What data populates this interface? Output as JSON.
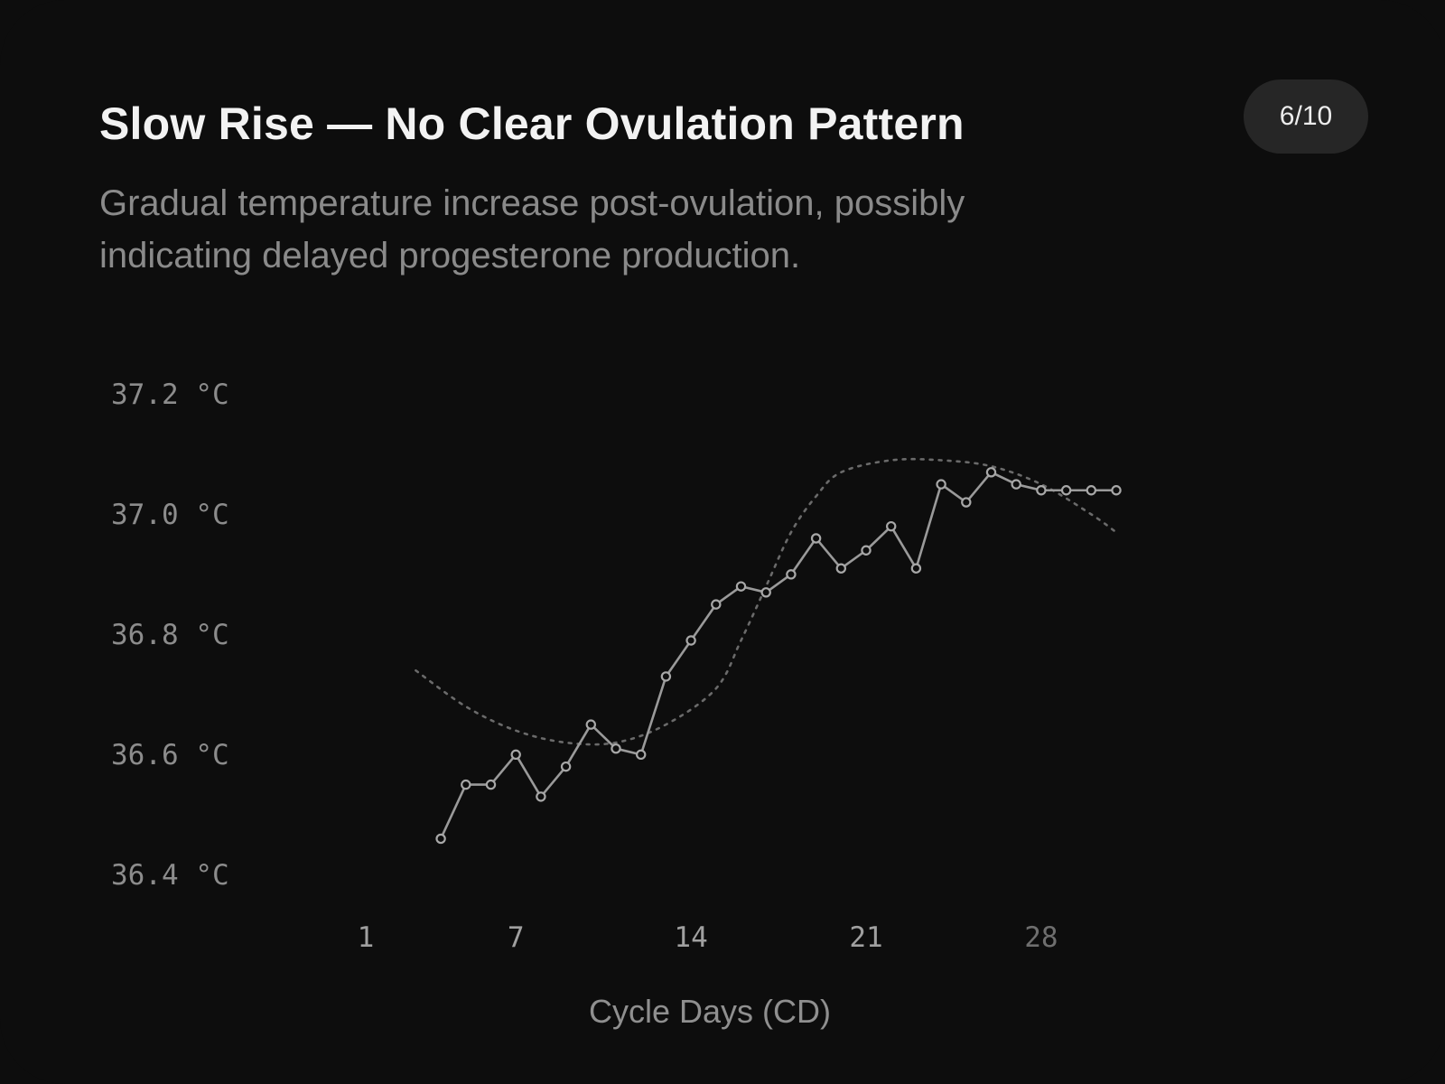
{
  "header": {
    "title": "Slow Rise — No Clear Ovulation Pattern",
    "subtitle": "Gradual temperature increase post-ovulation, possibly indicating delayed progesterone production.",
    "badge": "6/10"
  },
  "colors": {
    "background": "#0d0d0d",
    "line": "#9a9a9a",
    "trend": "#6a6a6a",
    "grid": "#262626"
  },
  "chart_data": {
    "type": "line",
    "xlabel": "Cycle Days (CD)",
    "ylabel": "",
    "x_ticks": [
      "1",
      "7",
      "14",
      "21",
      "28"
    ],
    "x_tick_values": [
      1,
      7,
      14,
      21,
      28
    ],
    "y_ticks": [
      "37.2 °C",
      "37.0 °C",
      "36.8 °C",
      "36.6 °C",
      "36.4 °C"
    ],
    "y_tick_values": [
      37.2,
      37.0,
      36.8,
      36.6,
      36.4
    ],
    "xlim": [
      1,
      32
    ],
    "ylim": [
      36.4,
      37.2
    ],
    "grid": true,
    "series": [
      {
        "x": [
          4,
          5,
          6,
          7,
          8,
          9,
          10,
          11,
          12,
          13,
          14,
          15,
          16,
          17,
          18,
          19,
          20,
          21,
          22,
          23,
          24,
          25,
          26,
          27,
          28,
          29,
          30,
          31
        ],
        "y": [
          36.47,
          36.56,
          36.56,
          36.61,
          36.54,
          36.59,
          36.66,
          36.62,
          36.61,
          36.74,
          36.8,
          36.86,
          36.89,
          36.88,
          36.91,
          36.97,
          36.92,
          36.95,
          36.99,
          36.92,
          37.06,
          37.03,
          37.08,
          37.06,
          37.05,
          37.05,
          37.05,
          37.05
        ]
      }
    ],
    "trend": {
      "style": "dotted",
      "x": [
        3,
        5,
        7,
        9,
        11,
        13,
        15,
        16,
        17,
        18,
        19,
        20,
        22,
        24,
        26,
        28,
        30,
        31
      ],
      "y": [
        36.75,
        36.69,
        36.65,
        36.63,
        36.63,
        36.66,
        36.72,
        36.8,
        36.89,
        36.98,
        37.04,
        37.08,
        37.1,
        37.1,
        37.09,
        37.06,
        37.01,
        36.98
      ]
    }
  }
}
